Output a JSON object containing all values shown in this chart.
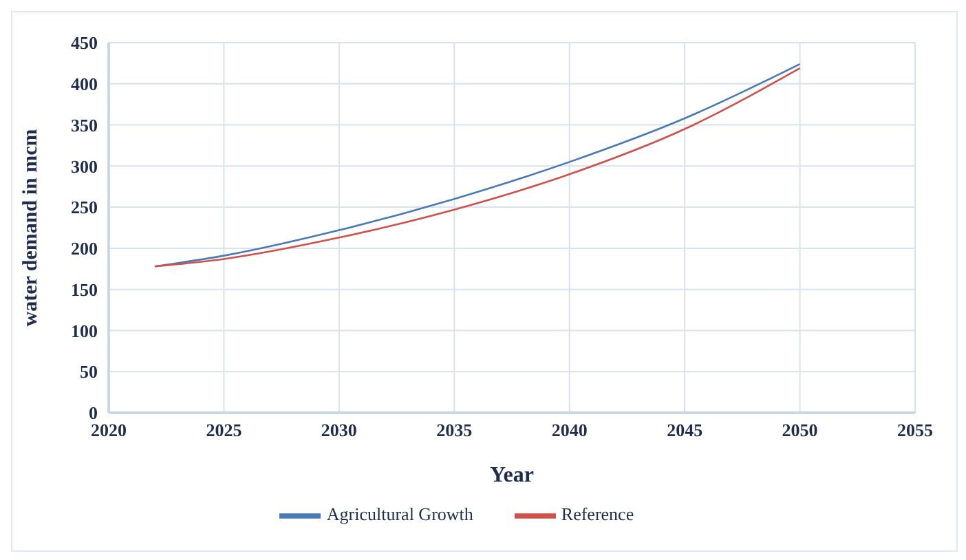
{
  "chart_data": {
    "type": "line",
    "xlabel": "Year",
    "ylabel": "water demand in mcm",
    "x": [
      2022,
      2025,
      2030,
      2035,
      2040,
      2045,
      2050
    ],
    "series": [
      {
        "name": "Agricultural Growth",
        "color": "#4a7ab5",
        "values": [
          178,
          191,
          222,
          260,
          305,
          358,
          424
        ]
      },
      {
        "name": "Reference",
        "color": "#d0504a",
        "values": [
          178,
          187,
          213,
          247,
          290,
          345,
          419
        ]
      }
    ],
    "xlim": [
      2020,
      2055
    ],
    "xticks": [
      2020,
      2025,
      2030,
      2035,
      2040,
      2045,
      2050,
      2055
    ],
    "ylim": [
      0,
      450
    ],
    "yticks": [
      0,
      50,
      100,
      150,
      200,
      250,
      300,
      350,
      400,
      450
    ],
    "grid": true,
    "legend": "bottom",
    "marker": "none",
    "line_style": "solid"
  }
}
